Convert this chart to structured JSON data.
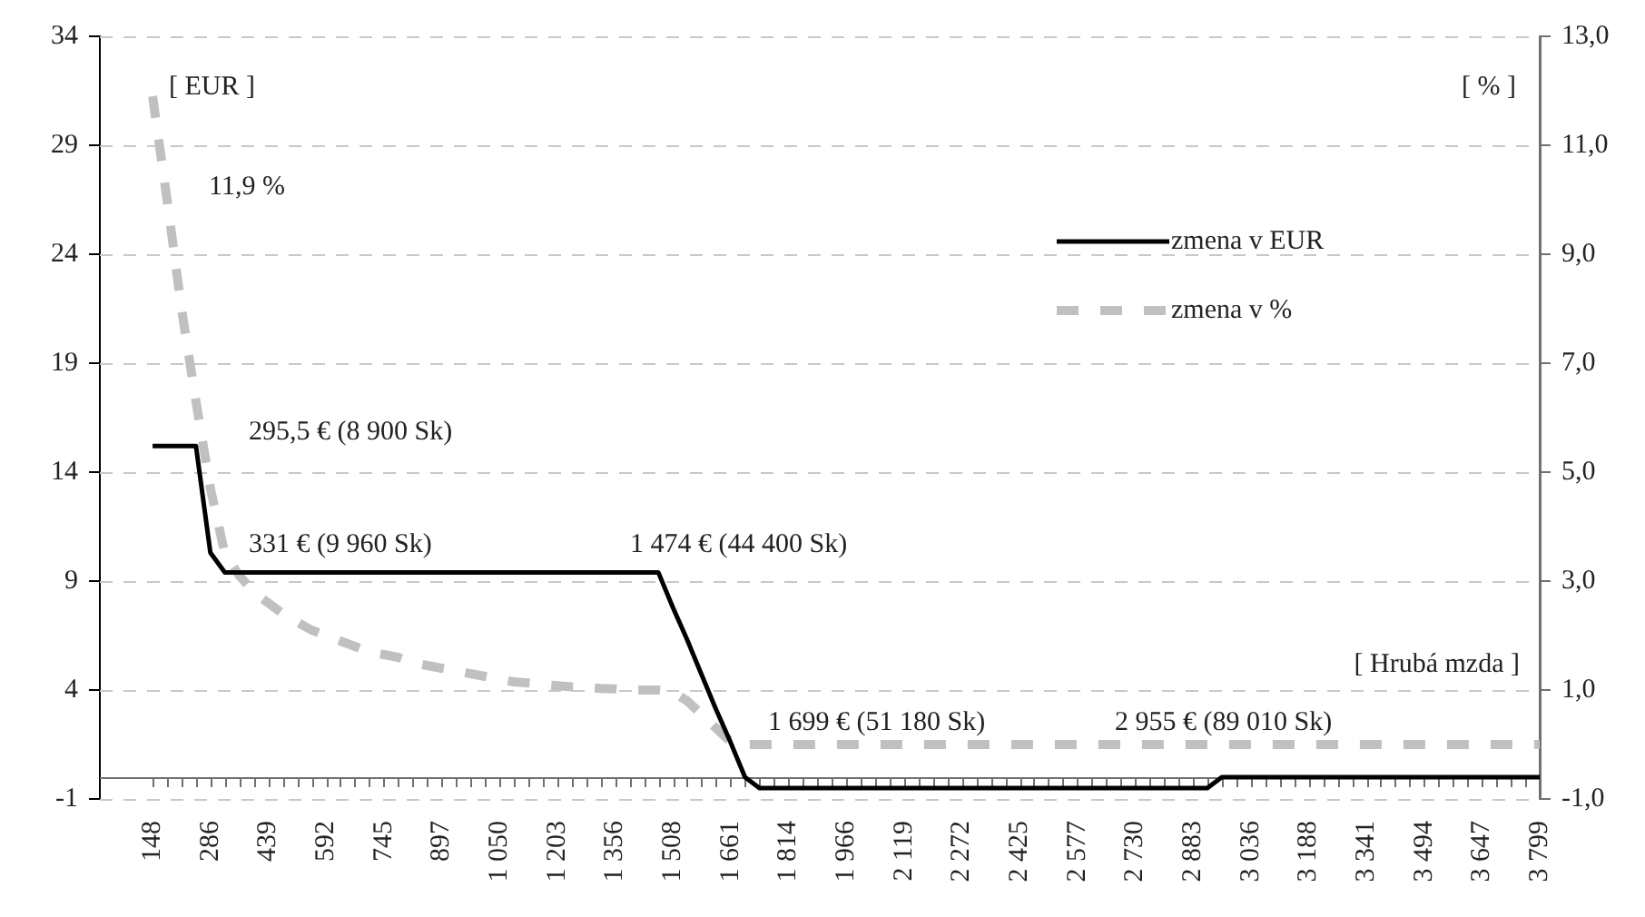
{
  "chart_data": {
    "type": "line",
    "xlabel": "[ Hrubá mzda ]",
    "ylabel": "[ EUR ]",
    "y2label": "[ % ]",
    "categories": [
      "148",
      null,
      null,
      null,
      "286",
      null,
      null,
      null,
      "439",
      null,
      null,
      null,
      "592",
      null,
      null,
      null,
      "745",
      null,
      null,
      null,
      "897",
      null,
      null,
      null,
      "1 050",
      null,
      null,
      null,
      "1 203",
      null,
      null,
      null,
      "1 356",
      null,
      null,
      null,
      "1 508",
      null,
      null,
      null,
      "1 661",
      null,
      null,
      null,
      "1 814",
      null,
      null,
      null,
      "1 966",
      null,
      null,
      null,
      "2 119",
      null,
      null,
      null,
      "2 272",
      null,
      null,
      null,
      "2 425",
      null,
      null,
      null,
      "2 577",
      null,
      null,
      null,
      "2 730",
      null,
      null,
      null,
      "2 883",
      null,
      null,
      null,
      "3 036",
      null,
      null,
      null,
      "3 188",
      null,
      null,
      null,
      "3 341",
      null,
      null,
      null,
      "3 494",
      null,
      null,
      null,
      "3 647",
      null,
      null,
      null,
      "3 799"
    ],
    "series": [
      {
        "name": "zmena v EUR",
        "color": "#000000",
        "line_style": "solid",
        "values": [
          15.2,
          15.2,
          15.2,
          15.2,
          10.3,
          9.4,
          9.4,
          9.4,
          9.4,
          9.4,
          9.4,
          9.4,
          9.4,
          9.4,
          9.4,
          9.4,
          9.4,
          9.4,
          9.4,
          9.4,
          9.4,
          9.4,
          9.4,
          9.4,
          9.4,
          9.4,
          9.4,
          9.4,
          9.4,
          9.4,
          9.4,
          9.4,
          9.4,
          9.4,
          9.4,
          9.4,
          7.8,
          6.3,
          4.7,
          3.1,
          1.6,
          0,
          -0.5,
          -0.5,
          -0.5,
          -0.5,
          -0.5,
          -0.5,
          -0.5,
          -0.5,
          -0.5,
          -0.5,
          -0.5,
          -0.5,
          -0.5,
          -0.5,
          -0.5,
          -0.5,
          -0.5,
          -0.5,
          -0.5,
          -0.5,
          -0.5,
          -0.5,
          -0.5,
          -0.5,
          -0.5,
          -0.5,
          -0.5,
          -0.5,
          -0.5,
          -0.5,
          -0.5,
          -0.5,
          0,
          0,
          0,
          0,
          0,
          0,
          0,
          0,
          0,
          0,
          0,
          0,
          0,
          0,
          0,
          0,
          0,
          0,
          0,
          0,
          0,
          0,
          0
        ]
      },
      {
        "name": "zmena v %",
        "color": "#c0c0c0",
        "line_style": "dashed",
        "axis": "y2",
        "values": [
          11.9,
          10.0,
          8.0,
          6.3,
          4.7,
          3.5,
          3.1,
          2.8,
          2.6,
          2.4,
          2.25,
          2.1,
          2.0,
          1.9,
          1.8,
          1.7,
          1.65,
          1.6,
          1.5,
          1.45,
          1.4,
          1.35,
          1.3,
          1.25,
          1.2,
          1.15,
          1.13,
          1.1,
          1.08,
          1.06,
          1.05,
          1.03,
          1.02,
          1.0,
          1.0,
          1.0,
          0.97,
          0.8,
          0.55,
          0.3,
          0.05,
          0,
          0,
          0,
          0,
          0,
          0,
          0,
          0,
          0,
          0,
          0,
          0,
          0,
          0,
          0,
          0,
          0,
          0,
          0,
          0,
          0,
          0,
          0,
          0,
          0,
          0,
          0,
          0,
          0,
          0,
          0,
          0,
          0,
          0,
          0,
          0,
          0,
          0,
          0,
          0,
          0,
          0,
          0,
          0,
          0,
          0,
          0,
          0,
          0,
          0,
          0,
          0,
          0,
          0,
          0,
          0
        ]
      }
    ],
    "ylim": [
      -1,
      34
    ],
    "yticks": [
      -1,
      4,
      9,
      14,
      19,
      24,
      29,
      34
    ],
    "y2lim": [
      -1,
      13
    ],
    "y2ticks": [
      {
        "value": -1,
        "label": "-1,0"
      },
      {
        "value": 1,
        "label": "1,0"
      },
      {
        "value": 3,
        "label": "3,0"
      },
      {
        "value": 5,
        "label": "5,0"
      },
      {
        "value": 7,
        "label": "7,0"
      },
      {
        "value": 9,
        "label": "9,0"
      },
      {
        "value": 11,
        "label": "11,0"
      },
      {
        "value": 13,
        "label": "13,0"
      }
    ],
    "grid": "y",
    "legend": "top right",
    "annotations": [
      "11,9 %",
      "295,5 € (8 900 Sk)",
      "331 € (9 960 Sk)",
      "1 474 € (44 400 Sk)",
      "1 699 € (51 180 Sk)",
      "2 955 € (89 010 Sk)"
    ]
  }
}
